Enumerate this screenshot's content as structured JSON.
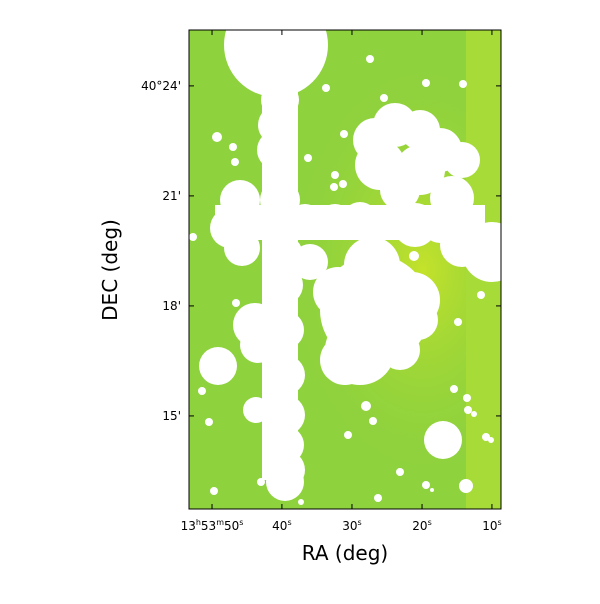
{
  "chart_data": {
    "type": "image",
    "xlabel": "RA (deg)",
    "ylabel": "DEC (deg)",
    "xlim": [
      208.472,
      208.2863
    ],
    "ylim": [
      40.2077,
      40.4254
    ],
    "xticks": [
      {
        "value": 208.4583,
        "label": "13h53m50s"
      },
      {
        "value": 208.4167,
        "label": "40s"
      },
      {
        "value": 208.375,
        "label": "30s"
      },
      {
        "value": 208.3333,
        "label": "20s"
      },
      {
        "value": 208.2917,
        "label": "10s"
      }
    ],
    "yticks": [
      {
        "value": 40.25,
        "label": "15'"
      },
      {
        "value": 40.3,
        "label": "18'"
      },
      {
        "value": 40.35,
        "label": "21'"
      },
      {
        "value": 40.4,
        "label": "40°24'"
      }
    ]
  }
}
